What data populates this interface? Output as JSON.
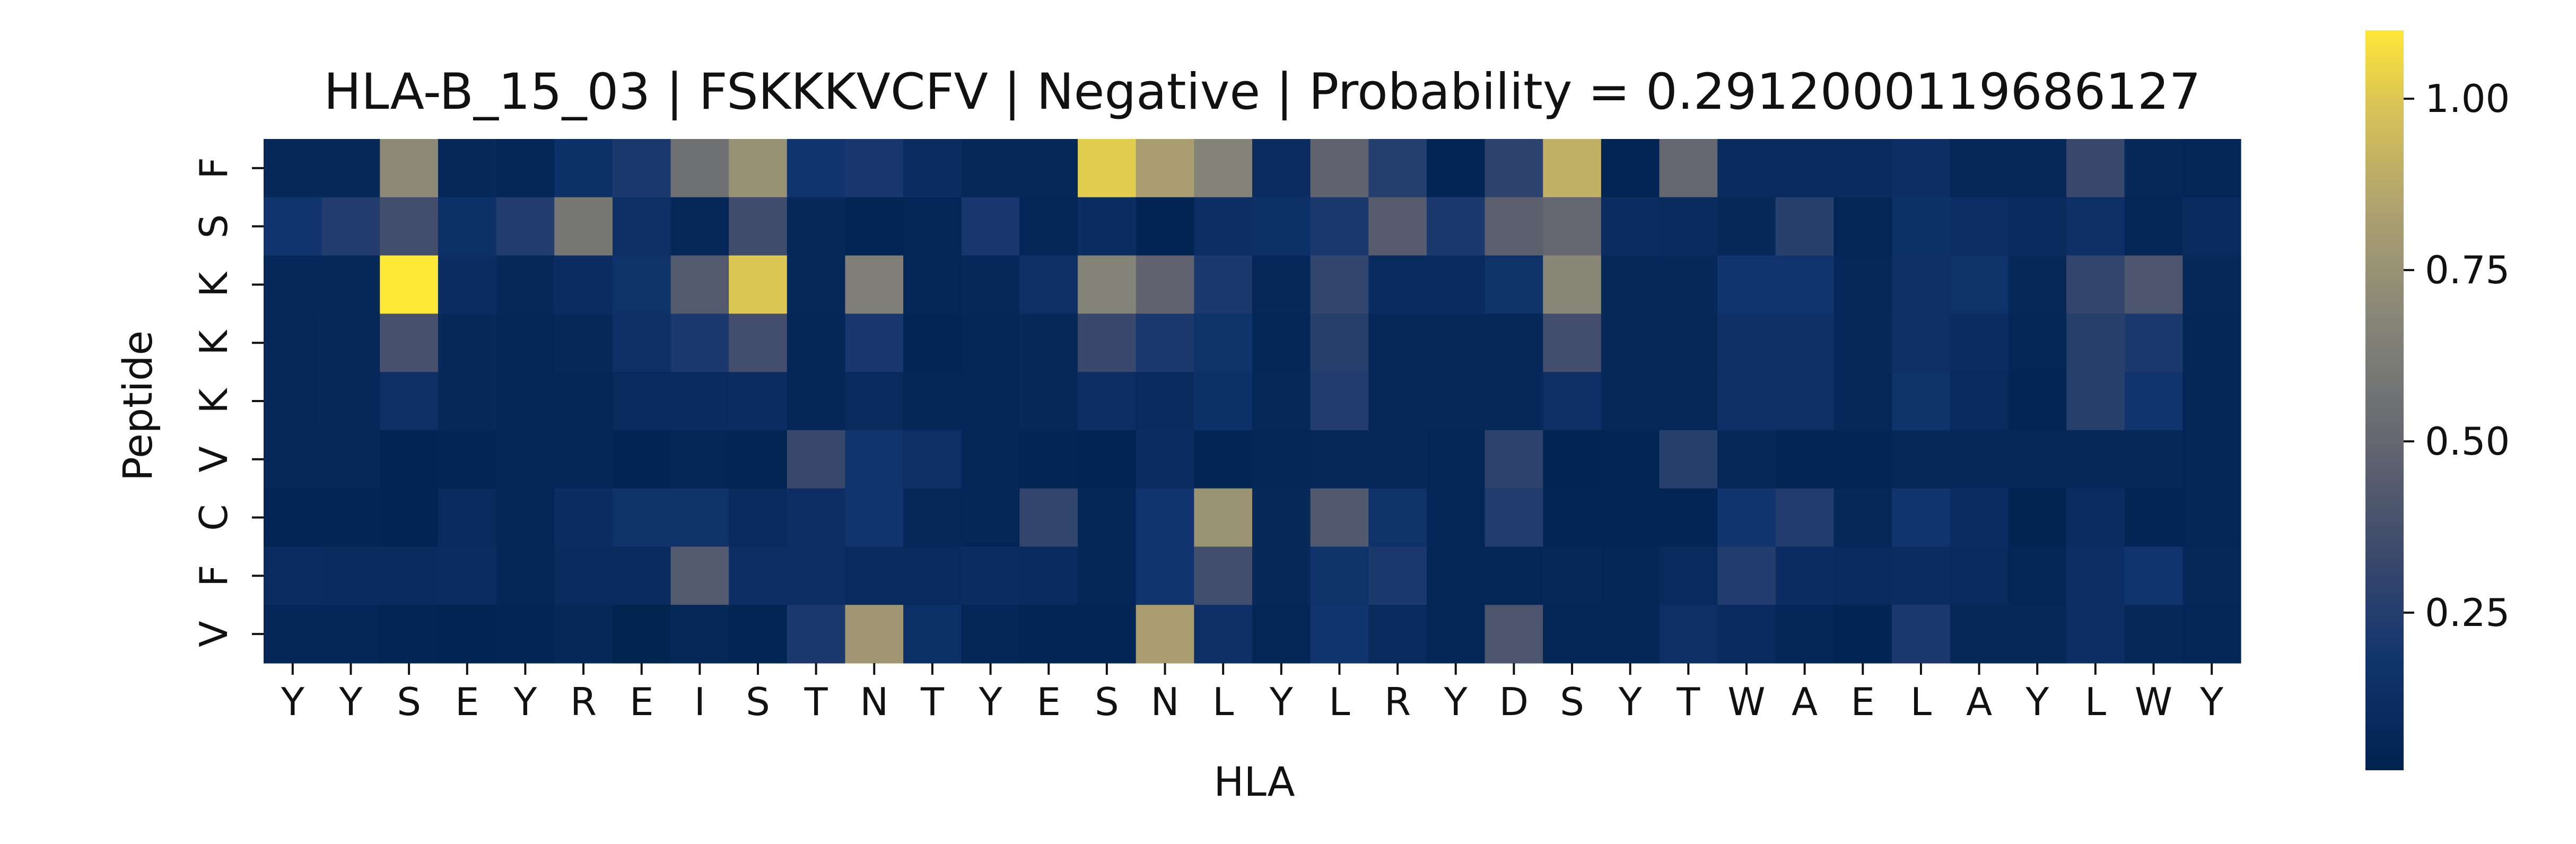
{
  "chart_data": {
    "type": "heatmap",
    "title": "HLA-B_15_03 | FSKKKVCFV | Negative | Probability = 0.2912000119686127",
    "xlabel": "HLA",
    "ylabel": "Peptide",
    "x_categories": [
      "Y",
      "Y",
      "S",
      "E",
      "Y",
      "R",
      "E",
      "I",
      "S",
      "T",
      "N",
      "T",
      "Y",
      "E",
      "S",
      "N",
      "L",
      "Y",
      "L",
      "R",
      "Y",
      "D",
      "S",
      "Y",
      "T",
      "W",
      "A",
      "E",
      "L",
      "A",
      "Y",
      "L",
      "W",
      "Y"
    ],
    "y_categories": [
      "F",
      "S",
      "K",
      "K",
      "K",
      "V",
      "C",
      "F",
      "V"
    ],
    "colormap": "cividis",
    "colorbar": {
      "min": 0.02,
      "max": 1.1,
      "ticks": [
        0.25,
        0.5,
        0.75,
        1.0
      ],
      "tick_labels": [
        "0.25",
        "0.50",
        "0.75",
        "1.00"
      ]
    },
    "values": [
      [
        0.08,
        0.08,
        0.7,
        0.08,
        0.06,
        0.15,
        0.22,
        0.55,
        0.75,
        0.18,
        0.2,
        0.12,
        0.08,
        0.08,
        1.02,
        0.82,
        0.66,
        0.12,
        0.48,
        0.25,
        0.05,
        0.28,
        0.9,
        0.05,
        0.5,
        0.1,
        0.1,
        0.1,
        0.13,
        0.07,
        0.07,
        0.32,
        0.08,
        0.06
      ],
      [
        0.18,
        0.24,
        0.36,
        0.15,
        0.24,
        0.6,
        0.14,
        0.07,
        0.35,
        0.08,
        0.05,
        0.06,
        0.2,
        0.06,
        0.12,
        0.04,
        0.13,
        0.15,
        0.22,
        0.44,
        0.22,
        0.46,
        0.5,
        0.12,
        0.1,
        0.08,
        0.26,
        0.06,
        0.15,
        0.13,
        0.1,
        0.14,
        0.06,
        0.09
      ],
      [
        0.08,
        0.08,
        1.1,
        0.12,
        0.08,
        0.12,
        0.16,
        0.43,
        1.0,
        0.08,
        0.64,
        0.06,
        0.08,
        0.14,
        0.66,
        0.48,
        0.22,
        0.07,
        0.3,
        0.1,
        0.1,
        0.16,
        0.68,
        0.08,
        0.08,
        0.18,
        0.18,
        0.07,
        0.14,
        0.16,
        0.08,
        0.3,
        0.4,
        0.08
      ],
      [
        0.08,
        0.07,
        0.38,
        0.08,
        0.06,
        0.08,
        0.14,
        0.22,
        0.36,
        0.06,
        0.2,
        0.05,
        0.06,
        0.08,
        0.32,
        0.22,
        0.16,
        0.06,
        0.26,
        0.07,
        0.07,
        0.07,
        0.36,
        0.07,
        0.07,
        0.14,
        0.14,
        0.08,
        0.14,
        0.11,
        0.06,
        0.26,
        0.22,
        0.06
      ],
      [
        0.08,
        0.07,
        0.14,
        0.08,
        0.06,
        0.06,
        0.09,
        0.09,
        0.12,
        0.06,
        0.09,
        0.06,
        0.06,
        0.08,
        0.13,
        0.09,
        0.15,
        0.07,
        0.24,
        0.07,
        0.07,
        0.08,
        0.14,
        0.07,
        0.07,
        0.14,
        0.14,
        0.07,
        0.17,
        0.09,
        0.05,
        0.26,
        0.18,
        0.06
      ],
      [
        0.07,
        0.07,
        0.04,
        0.05,
        0.06,
        0.06,
        0.04,
        0.06,
        0.05,
        0.32,
        0.18,
        0.14,
        0.06,
        0.05,
        0.04,
        0.12,
        0.05,
        0.06,
        0.07,
        0.08,
        0.06,
        0.28,
        0.04,
        0.05,
        0.26,
        0.07,
        0.05,
        0.05,
        0.08,
        0.07,
        0.07,
        0.07,
        0.07,
        0.06
      ],
      [
        0.05,
        0.05,
        0.04,
        0.09,
        0.06,
        0.12,
        0.16,
        0.16,
        0.09,
        0.13,
        0.18,
        0.07,
        0.06,
        0.3,
        0.06,
        0.18,
        0.76,
        0.08,
        0.42,
        0.16,
        0.06,
        0.24,
        0.05,
        0.05,
        0.05,
        0.18,
        0.24,
        0.07,
        0.18,
        0.12,
        0.03,
        0.11,
        0.05,
        0.06
      ],
      [
        0.11,
        0.1,
        0.1,
        0.11,
        0.06,
        0.09,
        0.09,
        0.43,
        0.13,
        0.13,
        0.09,
        0.09,
        0.11,
        0.1,
        0.06,
        0.18,
        0.36,
        0.08,
        0.16,
        0.22,
        0.06,
        0.06,
        0.07,
        0.06,
        0.09,
        0.24,
        0.12,
        0.09,
        0.11,
        0.09,
        0.06,
        0.13,
        0.18,
        0.08
      ],
      [
        0.06,
        0.06,
        0.05,
        0.04,
        0.05,
        0.08,
        0.03,
        0.07,
        0.05,
        0.22,
        0.78,
        0.15,
        0.06,
        0.05,
        0.05,
        0.82,
        0.14,
        0.06,
        0.18,
        0.09,
        0.06,
        0.4,
        0.06,
        0.06,
        0.14,
        0.09,
        0.06,
        0.04,
        0.22,
        0.07,
        0.07,
        0.13,
        0.08,
        0.06
      ]
    ]
  }
}
